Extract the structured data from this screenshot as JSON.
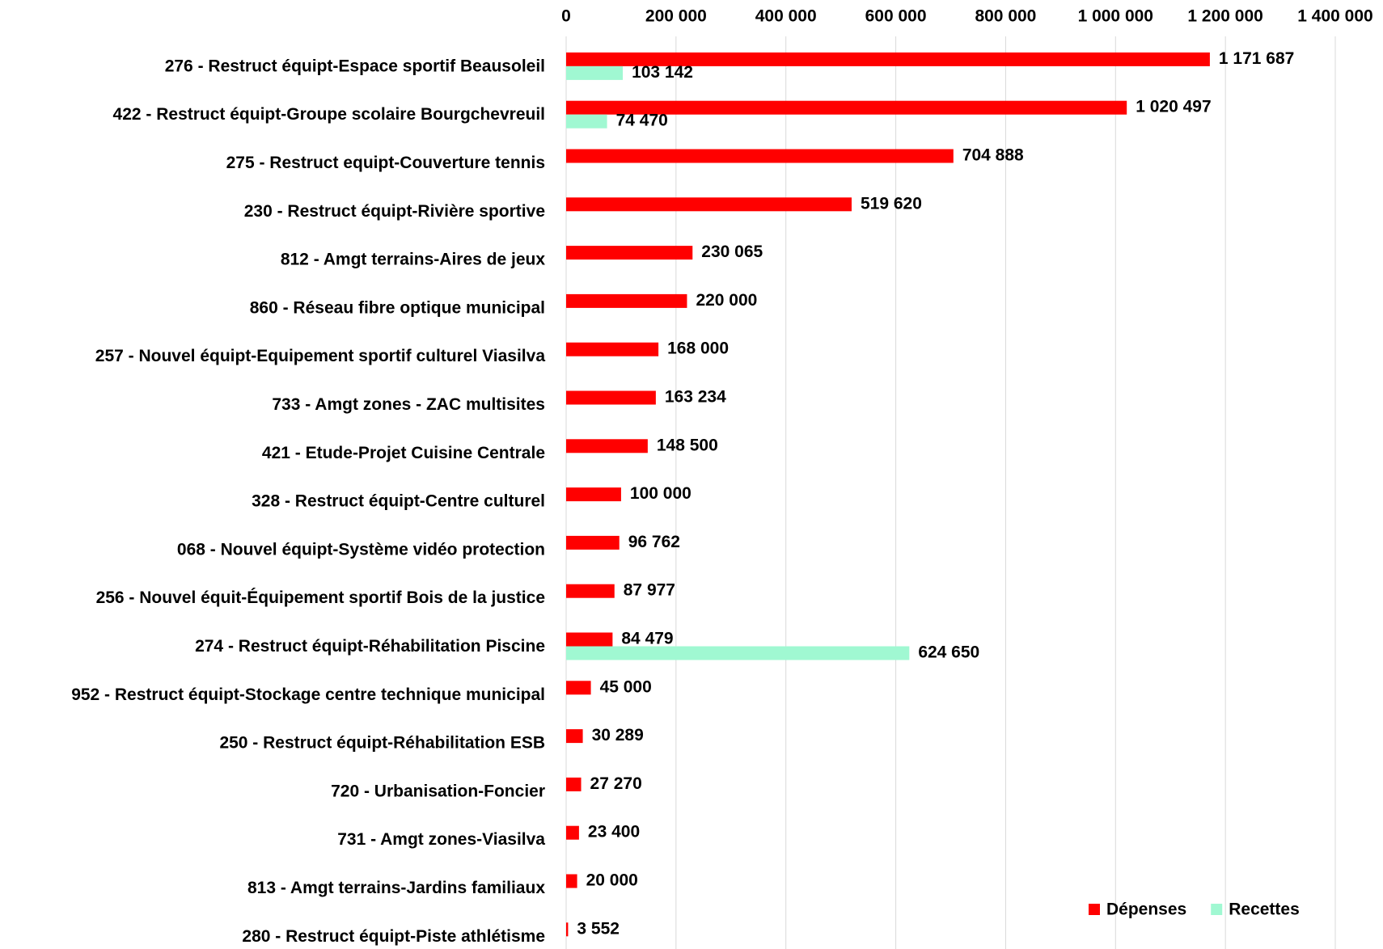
{
  "chart_data": {
    "type": "hbar",
    "categories": [
      "276 - Restruct équipt-Espace sportif Beausoleil",
      "422 - Restruct équipt-Groupe scolaire Bourgchevreuil",
      "275 - Restruct equipt-Couverture tennis",
      "230 - Restruct équipt-Rivière sportive",
      "812 - Amgt terrains-Aires de jeux",
      "860 - Réseau fibre optique municipal",
      "257 - Nouvel équipt-Equipement sportif culturel Viasilva",
      "733 - Amgt zones - ZAC multisites",
      "421 - Etude-Projet Cuisine Centrale",
      "328 - Restruct équipt-Centre culturel",
      "068 - Nouvel équipt-Système vidéo protection",
      "256 - Nouvel équit-Équipement sportif Bois de la justice",
      "274 - Restruct équipt-Réhabilitation Piscine",
      "952 - Restruct équipt-Stockage centre technique municipal",
      "250 - Restruct équipt-Réhabilitation ESB",
      "720 - Urbanisation-Foncier",
      "731 - Amgt zones-Viasilva",
      "813 - Amgt terrains-Jardins familiaux",
      "280 - Restruct équipt-Piste athlétisme"
    ],
    "series": [
      {
        "name": "Dépenses",
        "color": "#ff0000",
        "values": [
          1171687,
          1020497,
          704888,
          519620,
          230065,
          220000,
          168000,
          163234,
          148500,
          100000,
          96762,
          87977,
          84479,
          45000,
          30289,
          27270,
          23400,
          20000,
          3552
        ],
        "value_labels": [
          "1 171 687",
          "1 020 497",
          "704 888",
          "519 620",
          "230 065",
          "220 000",
          "168 000",
          "163 234",
          "148 500",
          "100 000",
          "96 762",
          "87 977",
          "84 479",
          "45 000",
          "30 289",
          "27 270",
          "23 400",
          "20 000",
          "3 552"
        ]
      },
      {
        "name": "Recettes",
        "color": "#a0f8d2",
        "values": [
          103142,
          74470,
          null,
          null,
          null,
          null,
          null,
          null,
          null,
          null,
          null,
          null,
          624650,
          null,
          null,
          null,
          null,
          null,
          null
        ],
        "value_labels": [
          "103 142",
          "74 470",
          null,
          null,
          null,
          null,
          null,
          null,
          null,
          null,
          null,
          null,
          "624 650",
          null,
          null,
          null,
          null,
          null,
          null
        ]
      }
    ],
    "xlim": [
      0,
      1400000
    ],
    "xticks": [
      0,
      {
        "value": 200000,
        "label": "200 000"
      },
      {
        "value": 400000,
        "label": "400 000"
      },
      {
        "value": 600000,
        "label": "600 000"
      },
      {
        "value": 800000,
        "label": "800 000"
      },
      {
        "value": 1000000,
        "label": "1 000 000"
      },
      {
        "value": 1200000,
        "label": "1 200 000"
      },
      {
        "value": 1400000,
        "label": "1 400 000"
      }
    ],
    "grid": true,
    "legend": "lower right"
  }
}
